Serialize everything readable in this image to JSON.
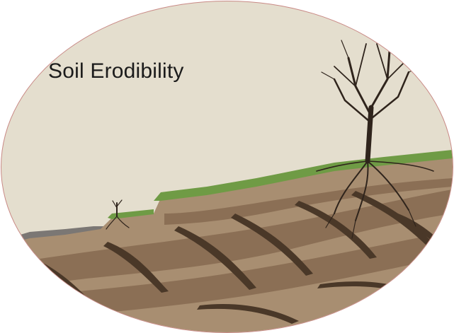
{
  "title": "Soil Erodibility",
  "colors": {
    "sky": "#e4dece",
    "grass": "#6f9b45",
    "soil_light": "#a88e71",
    "soil_mid": "#8b6f55",
    "soil_dark": "#4a3828",
    "roots": "#2f241c",
    "border": "#c98a86"
  }
}
